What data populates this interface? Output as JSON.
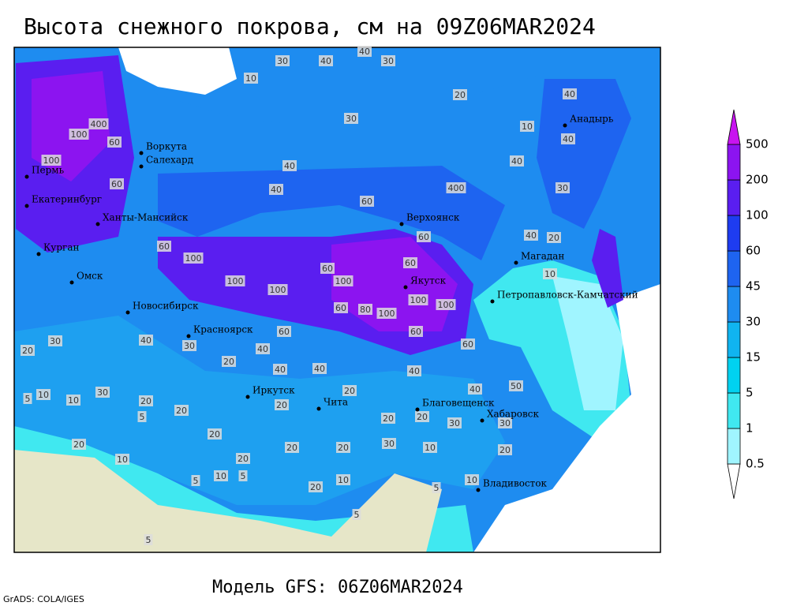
{
  "title": "Высота снежного покрова, см на 09Z06MAR2024",
  "footer": "Модель GFS: 06Z06MAR2024",
  "credit": "GrADS: COLA/IGES",
  "colorbar": {
    "levels": [
      0.5,
      1,
      5,
      15,
      30,
      45,
      60,
      100,
      200,
      500
    ],
    "colors": [
      "#ffffff",
      "#a0f5ff",
      "#40e8f0",
      "#00d2f0",
      "#10b4f0",
      "#1e8cf0",
      "#1e64f0",
      "#1e3cf0",
      "#5a1ef0",
      "#8c14f0",
      "#c814f0"
    ]
  },
  "cities": [
    "Воркута",
    "Салехард",
    "Пермь",
    "Екатеринбург",
    "Ханты-Мансийск",
    "Курган",
    "Омск",
    "Новосибирск",
    "Красноярск",
    "Иркутск",
    "Чита",
    "Благовещенск",
    "Хабаровск",
    "Владивосток",
    "Якутск",
    "Верхоянск",
    "Магадан",
    "Петропавловск-Камчатский",
    "Анадырь"
  ],
  "contour_labels": [
    30,
    40,
    30,
    40,
    20,
    30,
    10,
    100,
    400,
    60,
    100,
    60,
    40,
    40,
    60,
    400,
    40,
    30,
    40,
    10,
    40,
    60,
    100,
    100,
    100,
    60,
    100,
    60,
    60,
    40,
    20,
    10,
    100,
    100,
    100,
    80,
    60,
    60,
    40,
    20,
    30,
    40,
    30,
    20,
    40,
    40,
    40,
    60,
    60,
    40,
    50,
    20,
    20,
    20,
    20,
    30,
    30,
    20,
    20,
    10,
    5,
    10,
    30,
    5,
    20,
    20,
    10,
    20,
    20,
    20,
    30,
    10,
    10,
    5,
    5,
    20,
    10,
    5,
    10,
    5,
    5,
    20
  ]
}
